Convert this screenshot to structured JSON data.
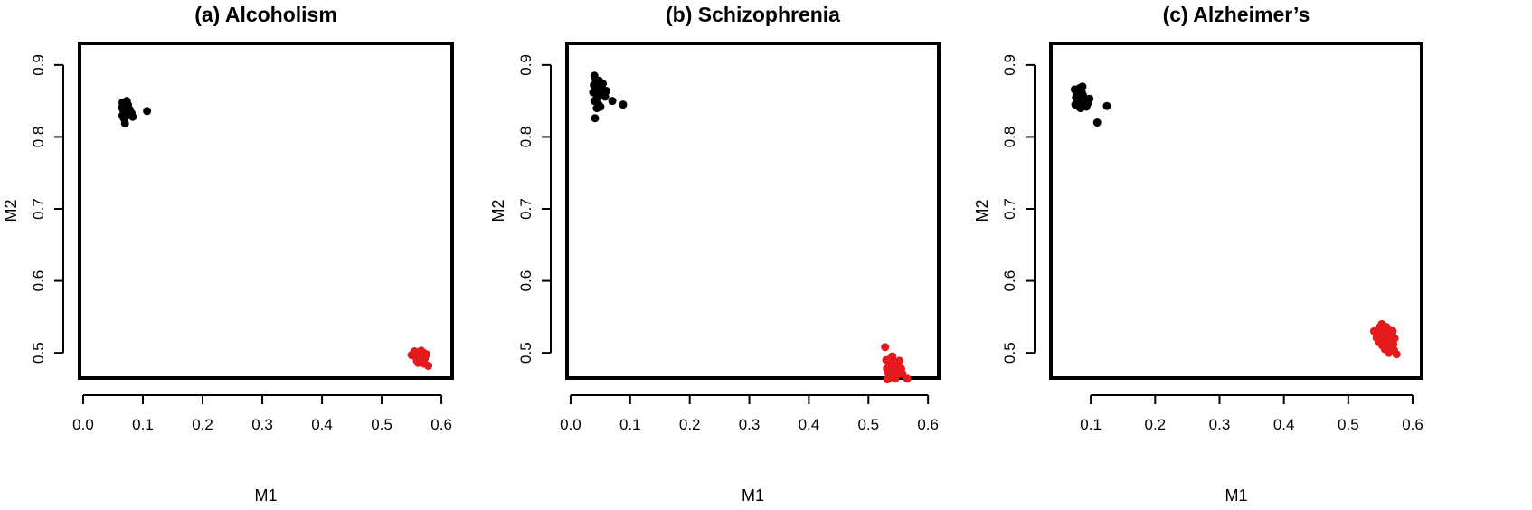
{
  "chart_data": [
    {
      "type": "scatter",
      "title": "(a) Alcoholism",
      "xlabel": "M1",
      "ylabel": "M2",
      "xticks": [
        "0.0",
        "0.1",
        "0.2",
        "0.3",
        "0.4",
        "0.5",
        "0.6"
      ],
      "yticks": [
        "0.5",
        "0.6",
        "0.7",
        "0.8",
        "0.9"
      ],
      "xlim": [
        -0.006,
        0.618
      ],
      "ylim": [
        0.465,
        0.93
      ],
      "grid": false,
      "series": [
        {
          "color": "#000000",
          "points": [
            [
              0.066,
              0.848
            ],
            [
              0.068,
              0.845
            ],
            [
              0.07,
              0.842
            ],
            [
              0.067,
              0.838
            ],
            [
              0.072,
              0.836
            ],
            [
              0.069,
              0.833
            ],
            [
              0.066,
              0.83
            ],
            [
              0.071,
              0.828
            ],
            [
              0.074,
              0.84
            ],
            [
              0.078,
              0.838
            ],
            [
              0.081,
              0.833
            ],
            [
              0.068,
              0.826
            ],
            [
              0.07,
              0.819
            ],
            [
              0.083,
              0.828
            ],
            [
              0.075,
              0.845
            ],
            [
              0.107,
              0.836
            ],
            [
              0.073,
              0.85
            ],
            [
              0.065,
              0.841
            ]
          ]
        },
        {
          "color": "#e41a1c",
          "points": [
            [
              0.55,
              0.497
            ],
            [
              0.555,
              0.502
            ],
            [
              0.56,
              0.499
            ],
            [
              0.565,
              0.495
            ],
            [
              0.57,
              0.5
            ],
            [
              0.558,
              0.493
            ],
            [
              0.563,
              0.49
            ],
            [
              0.568,
              0.488
            ],
            [
              0.572,
              0.492
            ],
            [
              0.561,
              0.486
            ],
            [
              0.556,
              0.496
            ],
            [
              0.575,
              0.498
            ],
            [
              0.578,
              0.482
            ],
            [
              0.566,
              0.503
            ],
            [
              0.559,
              0.489
            ],
            [
              0.571,
              0.485
            ],
            [
              0.553,
              0.499
            ],
            [
              0.564,
              0.492
            ]
          ]
        }
      ]
    },
    {
      "type": "scatter",
      "title": "(b) Schizophrenia",
      "xlabel": "M1",
      "ylabel": "M2",
      "xticks": [
        "0.0",
        "0.1",
        "0.2",
        "0.3",
        "0.4",
        "0.5",
        "0.6"
      ],
      "yticks": [
        "0.5",
        "0.6",
        "0.7",
        "0.8",
        "0.9"
      ],
      "xlim": [
        -0.006,
        0.618
      ],
      "ylim": [
        0.465,
        0.93
      ],
      "grid": false,
      "series": [
        {
          "color": "#000000",
          "points": [
            [
              0.04,
              0.885
            ],
            [
              0.042,
              0.88
            ],
            [
              0.044,
              0.876
            ],
            [
              0.039,
              0.872
            ],
            [
              0.046,
              0.868
            ],
            [
              0.041,
              0.865
            ],
            [
              0.048,
              0.862
            ],
            [
              0.043,
              0.859
            ],
            [
              0.05,
              0.87
            ],
            [
              0.052,
              0.866
            ],
            [
              0.045,
              0.855
            ],
            [
              0.04,
              0.85
            ],
            [
              0.047,
              0.845
            ],
            [
              0.055,
              0.86
            ],
            [
              0.058,
              0.856
            ],
            [
              0.07,
              0.85
            ],
            [
              0.088,
              0.845
            ],
            [
              0.044,
              0.84
            ],
            [
              0.05,
              0.842
            ],
            [
              0.041,
              0.826
            ],
            [
              0.038,
              0.862
            ],
            [
              0.054,
              0.874
            ],
            [
              0.06,
              0.864
            ],
            [
              0.048,
              0.878
            ]
          ]
        },
        {
          "color": "#e41a1c",
          "points": [
            [
              0.528,
              0.508
            ],
            [
              0.53,
              0.49
            ],
            [
              0.535,
              0.485
            ],
            [
              0.54,
              0.495
            ],
            [
              0.545,
              0.488
            ],
            [
              0.538,
              0.48
            ],
            [
              0.542,
              0.476
            ],
            [
              0.55,
              0.482
            ],
            [
              0.533,
              0.472
            ],
            [
              0.548,
              0.47
            ],
            [
              0.555,
              0.478
            ],
            [
              0.537,
              0.466
            ],
            [
              0.545,
              0.464
            ],
            [
              0.565,
              0.464
            ],
            [
              0.531,
              0.478
            ],
            [
              0.552,
              0.489
            ],
            [
              0.541,
              0.484
            ],
            [
              0.547,
              0.473
            ],
            [
              0.536,
              0.491
            ],
            [
              0.543,
              0.469
            ],
            [
              0.532,
              0.463
            ],
            [
              0.557,
              0.471
            ]
          ]
        }
      ]
    },
    {
      "type": "scatter",
      "title": "(c) Alzheimer’s",
      "xlabel": "M1",
      "ylabel": "M2",
      "xticks": [
        "0.1",
        "0.2",
        "0.3",
        "0.4",
        "0.5",
        "0.6"
      ],
      "yticks": [
        "0.5",
        "0.6",
        "0.7",
        "0.8",
        "0.9"
      ],
      "xlim": [
        0.038,
        0.614
      ],
      "ylim": [
        0.465,
        0.93
      ],
      "grid": false,
      "series": [
        {
          "color": "#000000",
          "points": [
            [
              0.075,
              0.866
            ],
            [
              0.078,
              0.862
            ],
            [
              0.08,
              0.858
            ],
            [
              0.077,
              0.855
            ],
            [
              0.082,
              0.852
            ],
            [
              0.079,
              0.849
            ],
            [
              0.085,
              0.846
            ],
            [
              0.081,
              0.843
            ],
            [
              0.088,
              0.858
            ],
            [
              0.09,
              0.854
            ],
            [
              0.083,
              0.868
            ],
            [
              0.086,
              0.862
            ],
            [
              0.092,
              0.85
            ],
            [
              0.095,
              0.846
            ],
            [
              0.098,
              0.853
            ],
            [
              0.076,
              0.845
            ],
            [
              0.084,
              0.84
            ],
            [
              0.125,
              0.843
            ],
            [
              0.11,
              0.82
            ],
            [
              0.087,
              0.87
            ],
            [
              0.093,
              0.842
            ],
            [
              0.079,
              0.86
            ],
            [
              0.089,
              0.847
            ],
            [
              0.081,
              0.864
            ]
          ]
        },
        {
          "color": "#e41a1c",
          "points": [
            [
              0.54,
              0.53
            ],
            [
              0.545,
              0.525
            ],
            [
              0.55,
              0.52
            ],
            [
              0.548,
              0.535
            ],
            [
              0.552,
              0.54
            ],
            [
              0.555,
              0.528
            ],
            [
              0.558,
              0.515
            ],
            [
              0.56,
              0.522
            ],
            [
              0.562,
              0.532
            ],
            [
              0.565,
              0.518
            ],
            [
              0.568,
              0.526
            ],
            [
              0.57,
              0.512
            ],
            [
              0.553,
              0.51
            ],
            [
              0.557,
              0.505
            ],
            [
              0.563,
              0.5
            ],
            [
              0.572,
              0.52
            ],
            [
              0.575,
              0.498
            ],
            [
              0.547,
              0.515
            ],
            [
              0.559,
              0.536
            ],
            [
              0.566,
              0.508
            ],
            [
              0.551,
              0.527
            ],
            [
              0.561,
              0.513
            ],
            [
              0.556,
              0.519
            ],
            [
              0.569,
              0.53
            ],
            [
              0.544,
              0.521
            ],
            [
              0.554,
              0.533
            ],
            [
              0.564,
              0.524
            ],
            [
              0.558,
              0.509
            ],
            [
              0.571,
              0.504
            ],
            [
              0.549,
              0.529
            ],
            [
              0.567,
              0.516
            ],
            [
              0.562,
              0.503
            ]
          ]
        }
      ]
    }
  ]
}
